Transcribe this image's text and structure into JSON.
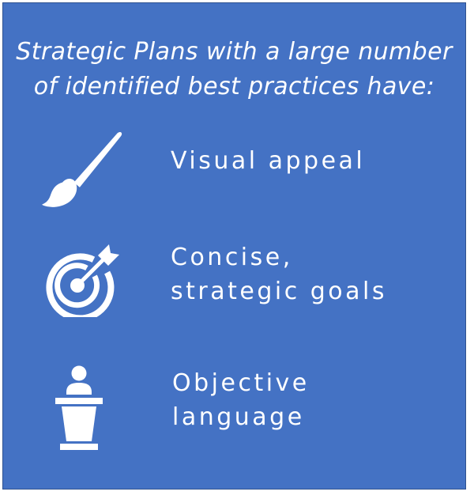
{
  "colors": {
    "background": "#4472c4",
    "border": "#2f528f",
    "text": "#ffffff"
  },
  "heading": {
    "line1": "Strategic Plans with a large number",
    "line2": "of identified best practices have:"
  },
  "items": [
    {
      "icon": "paintbrush-icon",
      "lines": [
        "Visual appeal"
      ]
    },
    {
      "icon": "target-arrow-icon",
      "lines": [
        "Concise,",
        "strategic goals"
      ]
    },
    {
      "icon": "speaker-podium-icon",
      "lines": [
        "Objective",
        "language"
      ]
    }
  ]
}
